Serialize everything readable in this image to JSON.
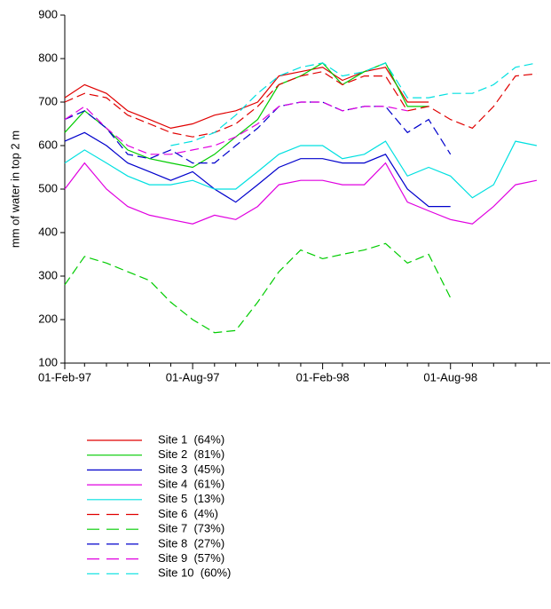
{
  "chart_data": {
    "type": "line",
    "y_label": "mm of water in top 2 m",
    "x": [
      "1997-02-01",
      "1997-03-01",
      "1997-04-01",
      "1997-05-01",
      "1997-06-01",
      "1997-07-01",
      "1997-08-01",
      "1997-09-01",
      "1997-10-01",
      "1997-11-01",
      "1997-12-01",
      "1998-01-01",
      "1998-02-01",
      "1998-03-01",
      "1998-04-01",
      "1998-05-01",
      "1998-06-01",
      "1998-07-01",
      "1998-08-01",
      "1998-09-01",
      "1998-10-01",
      "1998-11-01",
      "1998-12-01"
    ],
    "xlim": [
      "1997-02-01",
      "1998-12-20"
    ],
    "xticks": [
      {
        "value": "1997-02-01",
        "label": "01-Feb-97"
      },
      {
        "value": "1997-08-01",
        "label": "01-Aug-97"
      },
      {
        "value": "1998-02-01",
        "label": "01-Feb-98"
      },
      {
        "value": "1998-08-01",
        "label": "01-Aug-98"
      }
    ],
    "xminorticks": [
      "1997-03-01",
      "1997-04-01",
      "1997-05-01",
      "1997-06-01",
      "1997-07-01",
      "1997-09-01",
      "1997-10-01",
      "1997-11-01",
      "1997-12-01",
      "1998-01-01",
      "1998-03-01",
      "1998-04-01",
      "1998-05-01",
      "1998-06-01",
      "1998-07-01",
      "1998-09-01",
      "1998-10-01",
      "1998-11-01",
      "1998-12-01"
    ],
    "ylim": [
      100,
      900
    ],
    "yticks": [
      100,
      200,
      300,
      400,
      500,
      600,
      700,
      800,
      900
    ],
    "series": [
      {
        "name": "Site 1  (64%)",
        "color": "#e00000",
        "dashed": false,
        "values": [
          710,
          740,
          720,
          680,
          660,
          640,
          650,
          670,
          680,
          700,
          760,
          770,
          780,
          750,
          770,
          780,
          700,
          700,
          null,
          null,
          null,
          null,
          null
        ]
      },
      {
        "name": "Site 2  (81%)",
        "color": "#00cc00",
        "dashed": false,
        "values": [
          630,
          680,
          640,
          590,
          570,
          560,
          550,
          580,
          620,
          660,
          740,
          760,
          790,
          740,
          770,
          790,
          690,
          690,
          null,
          null,
          null,
          null,
          null
        ]
      },
      {
        "name": "Site 3  (45%)",
        "color": "#0000cc",
        "dashed": false,
        "values": [
          610,
          630,
          600,
          560,
          540,
          520,
          540,
          500,
          470,
          510,
          550,
          570,
          570,
          560,
          560,
          580,
          500,
          460,
          460,
          null,
          null,
          null,
          null
        ]
      },
      {
        "name": "Site 4  (61%)",
        "color": "#e000e0",
        "dashed": false,
        "values": [
          500,
          560,
          500,
          460,
          440,
          430,
          420,
          440,
          430,
          460,
          510,
          520,
          520,
          510,
          510,
          560,
          470,
          450,
          430,
          420,
          460,
          510,
          520
        ]
      },
      {
        "name": "Site 5  (13%)",
        "color": "#00e0e0",
        "dashed": false,
        "values": [
          560,
          590,
          560,
          530,
          510,
          510,
          520,
          500,
          500,
          540,
          580,
          600,
          600,
          570,
          580,
          610,
          530,
          550,
          530,
          480,
          510,
          610,
          600
        ]
      },
      {
        "name": "Site 6  (4%)",
        "color": "#e00000",
        "dashed": true,
        "values": [
          700,
          720,
          710,
          670,
          650,
          630,
          620,
          630,
          650,
          690,
          740,
          760,
          770,
          740,
          760,
          760,
          680,
          690,
          660,
          640,
          690,
          760,
          765
        ]
      },
      {
        "name": "Site 7  (73%)",
        "color": "#00cc00",
        "dashed": true,
        "values": [
          280,
          345,
          330,
          310,
          290,
          240,
          200,
          170,
          175,
          240,
          310,
          360,
          340,
          350,
          360,
          375,
          330,
          350,
          250,
          null,
          null,
          null,
          null
        ]
      },
      {
        "name": "Site 8  (27%)",
        "color": "#0000cc",
        "dashed": true,
        "values": [
          660,
          680,
          640,
          580,
          570,
          590,
          560,
          560,
          600,
          640,
          690,
          700,
          700,
          680,
          690,
          690,
          630,
          660,
          580,
          null,
          null,
          null,
          null
        ]
      },
      {
        "name": "Site 9  (57%)",
        "color": "#e000e0",
        "dashed": true,
        "values": [
          660,
          690,
          640,
          600,
          580,
          580,
          590,
          600,
          620,
          650,
          690,
          700,
          700,
          680,
          690,
          690,
          680,
          null,
          null,
          null,
          null,
          null,
          null
        ]
      },
      {
        "name": "Site 10  (60%)",
        "color": "#00e0e0",
        "dashed": true,
        "values": [
          null,
          null,
          null,
          null,
          null,
          600,
          610,
          630,
          670,
          720,
          760,
          780,
          790,
          760,
          770,
          790,
          710,
          710,
          720,
          720,
          740,
          780,
          790
        ]
      }
    ]
  }
}
